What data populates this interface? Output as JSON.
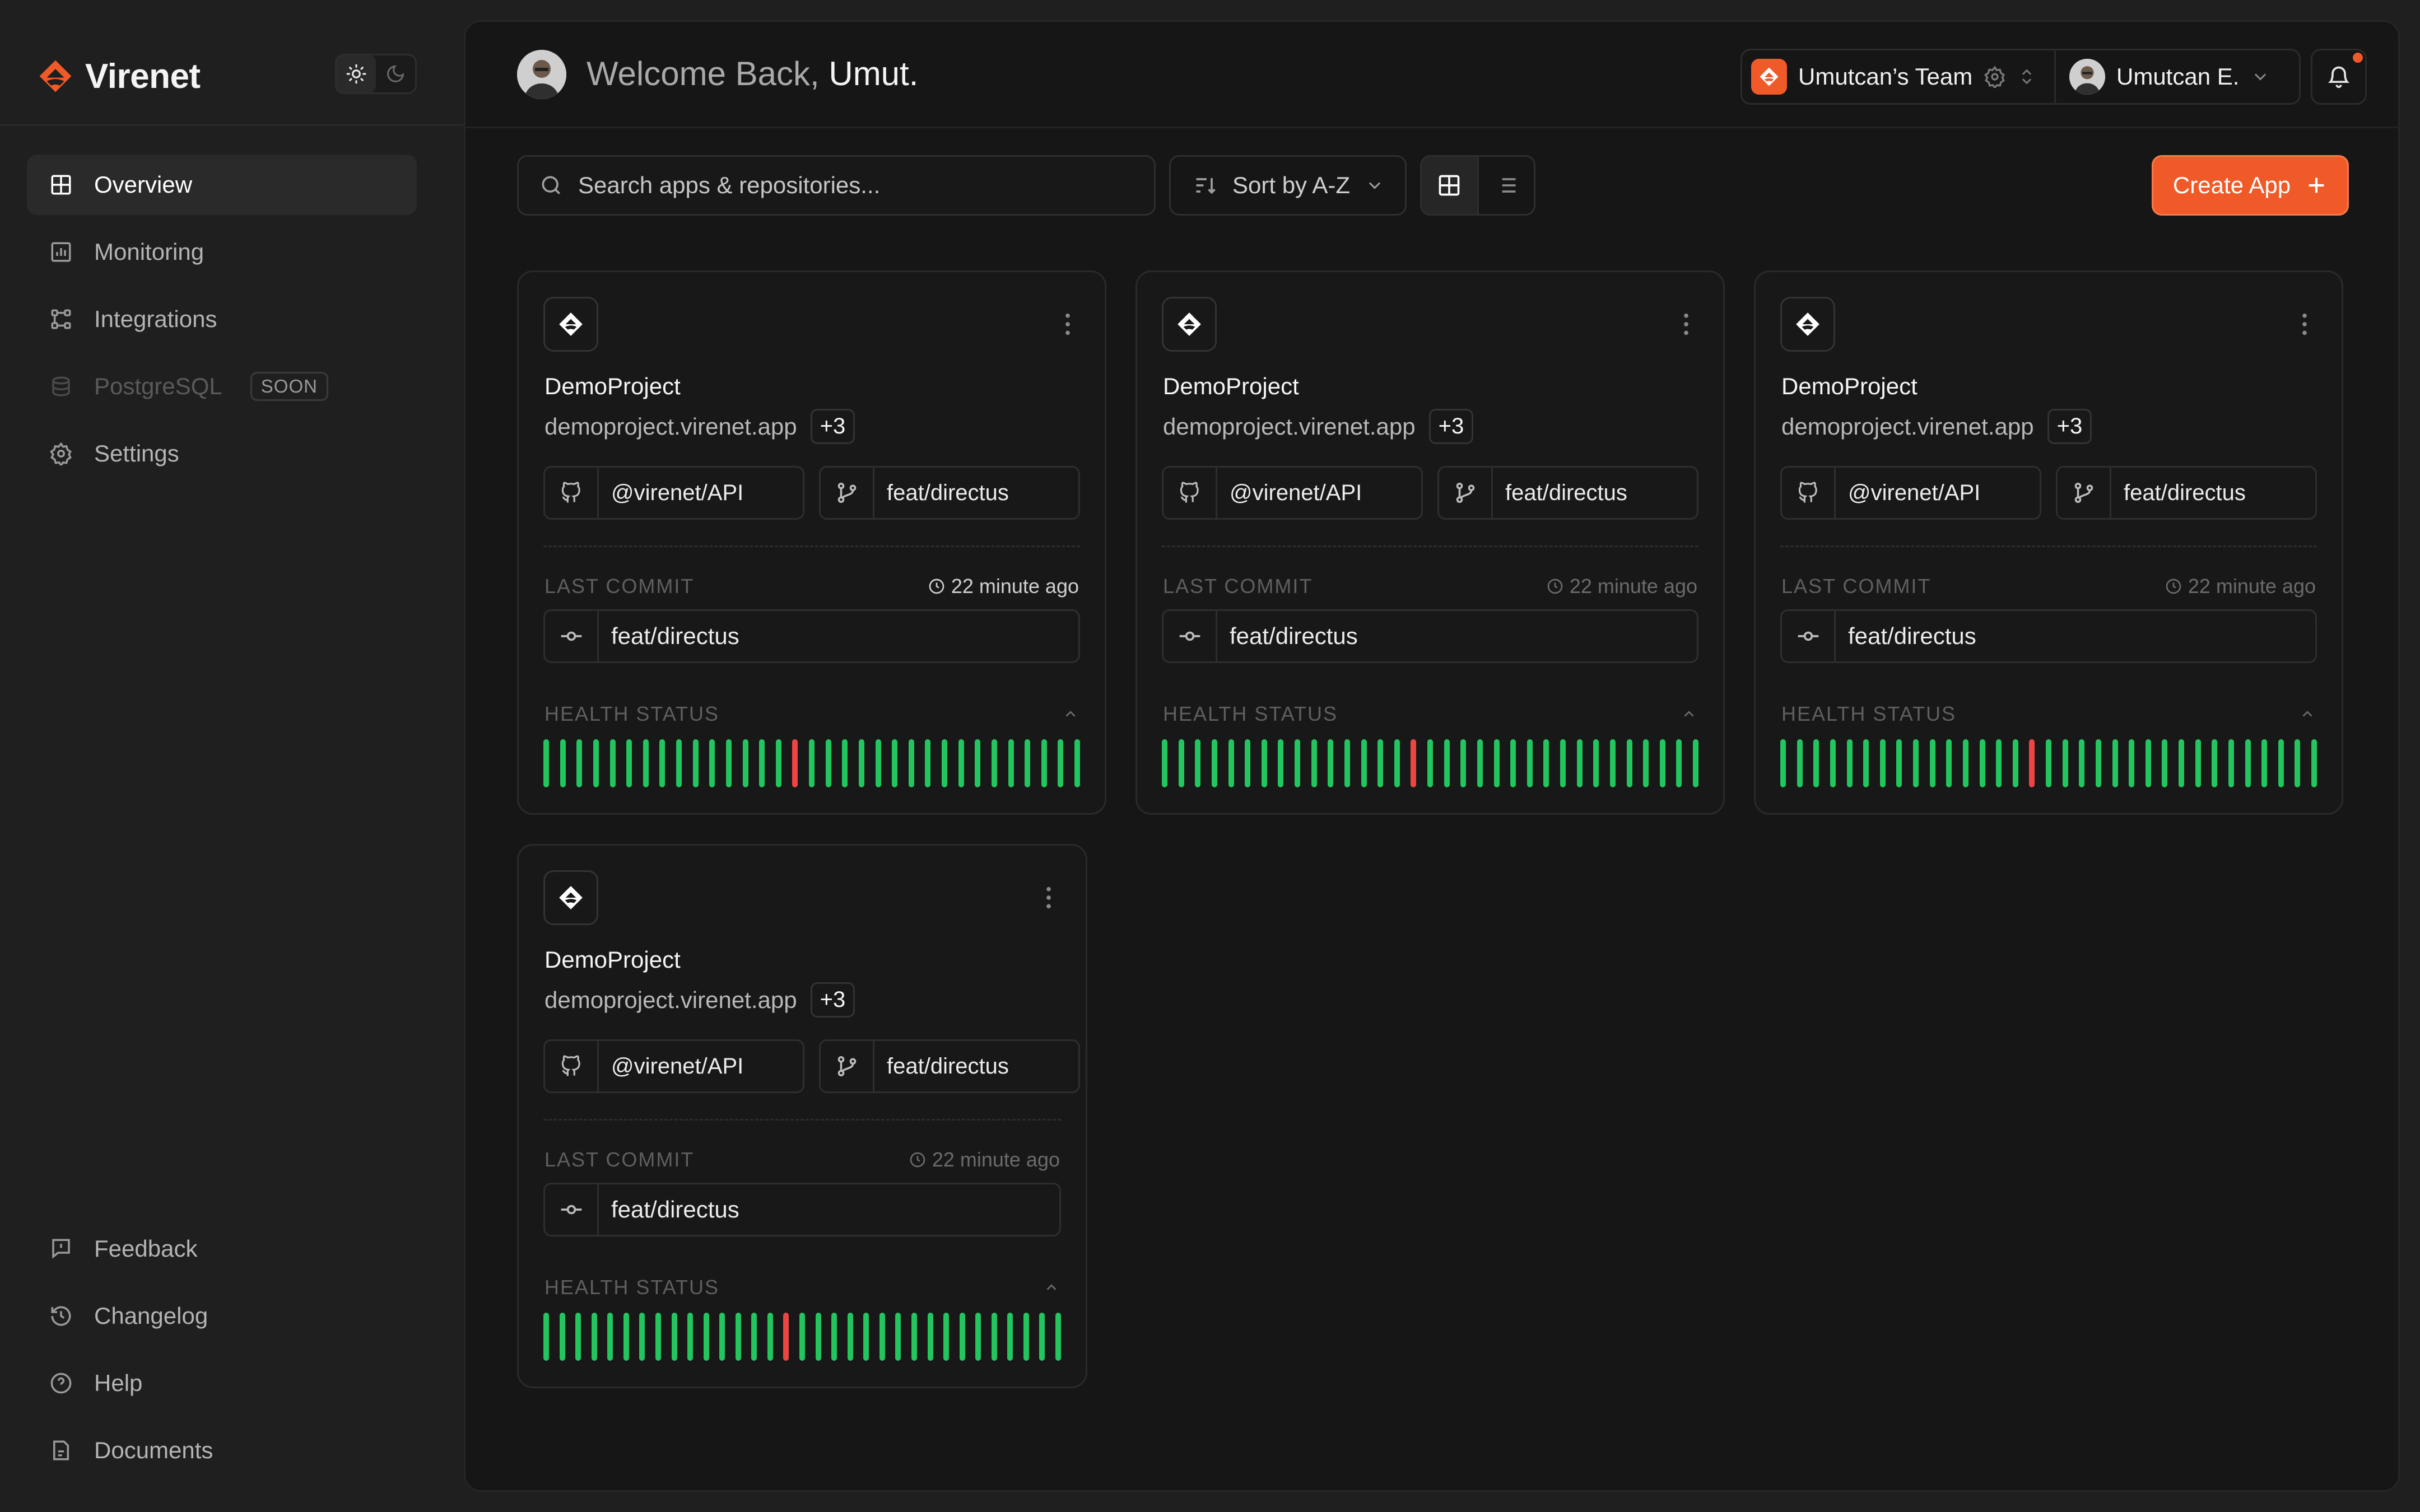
{
  "app": {
    "brand_name": "Virenet",
    "accent_color": "#f05a28"
  },
  "sidebar": {
    "items": [
      {
        "label": "Overview",
        "icon": "grid-icon",
        "active": true
      },
      {
        "label": "Monitoring",
        "icon": "chart-icon"
      },
      {
        "label": "Integrations",
        "icon": "nodes-icon"
      },
      {
        "label": "PostgreSQL",
        "icon": "database-icon",
        "disabled": true,
        "badge": "SOON"
      },
      {
        "label": "Settings",
        "icon": "gear-icon"
      }
    ],
    "bottom_items": [
      {
        "label": "Feedback",
        "icon": "feedback-icon"
      },
      {
        "label": "Changelog",
        "icon": "history-icon"
      },
      {
        "label": "Help",
        "icon": "help-icon"
      },
      {
        "label": "Documents",
        "icon": "document-icon"
      }
    ]
  },
  "header": {
    "welcome_prefix": "Welcome Back,",
    "welcome_name": "Umut.",
    "team_name": "Umutcan’s Team",
    "user_name": "Umutcan E."
  },
  "toolbar": {
    "search_placeholder": "Search apps & repositories...",
    "sort_label": "Sort by A-Z",
    "create_label": "Create App"
  },
  "cards": [
    {
      "title": "DemoProject",
      "domain": "demoproject.virenet.app",
      "more": "+3",
      "repo": "@virenet/API",
      "branch": "feat/directus",
      "last_commit_label": "LAST COMMIT",
      "last_commit_ago": "22 minute ago",
      "commit": "feat/directus",
      "health_label": "HEALTH STATUS",
      "health": [
        1,
        1,
        1,
        1,
        1,
        1,
        1,
        1,
        1,
        1,
        1,
        1,
        1,
        1,
        1,
        0,
        1,
        1,
        1,
        1,
        1,
        1,
        1,
        1,
        1,
        1,
        1,
        1,
        1,
        1,
        1,
        1,
        1
      ]
    },
    {
      "title": "DemoProject",
      "domain": "demoproject.virenet.app",
      "more": "+3",
      "repo": "@virenet/API",
      "branch": "feat/directus",
      "last_commit_label": "LAST COMMIT",
      "last_commit_ago": "22 minute ago",
      "commit": "feat/directus",
      "health_label": "HEALTH STATUS",
      "health": [
        1,
        1,
        1,
        1,
        1,
        1,
        1,
        1,
        1,
        1,
        1,
        1,
        1,
        1,
        1,
        0,
        1,
        1,
        1,
        1,
        1,
        1,
        1,
        1,
        1,
        1,
        1,
        1,
        1,
        1,
        1,
        1,
        1
      ]
    },
    {
      "title": "DemoProject",
      "domain": "demoproject.virenet.app",
      "more": "+3",
      "repo": "@virenet/API",
      "branch": "feat/directus",
      "last_commit_label": "LAST COMMIT",
      "last_commit_ago": "22 minute ago",
      "commit": "feat/directus",
      "health_label": "HEALTH STATUS",
      "health": [
        1,
        1,
        1,
        1,
        1,
        1,
        1,
        1,
        1,
        1,
        1,
        1,
        1,
        1,
        1,
        0,
        1,
        1,
        1,
        1,
        1,
        1,
        1,
        1,
        1,
        1,
        1,
        1,
        1,
        1,
        1,
        1,
        1
      ]
    },
    {
      "title": "DemoProject",
      "domain": "demoproject.virenet.app",
      "more": "+3",
      "repo": "@virenet/API",
      "branch": "feat/directus",
      "last_commit_label": "LAST COMMIT",
      "last_commit_ago": "22 minute ago",
      "commit": "feat/directus",
      "health_label": "HEALTH STATUS",
      "health": [
        1,
        1,
        1,
        1,
        1,
        1,
        1,
        1,
        1,
        1,
        1,
        1,
        1,
        1,
        1,
        0,
        1,
        1,
        1,
        1,
        1,
        1,
        1,
        1,
        1,
        1,
        1,
        1,
        1,
        1,
        1,
        1,
        1
      ]
    }
  ],
  "colors": {
    "healthy": "#22c55e",
    "unhealthy": "#ef4444"
  }
}
